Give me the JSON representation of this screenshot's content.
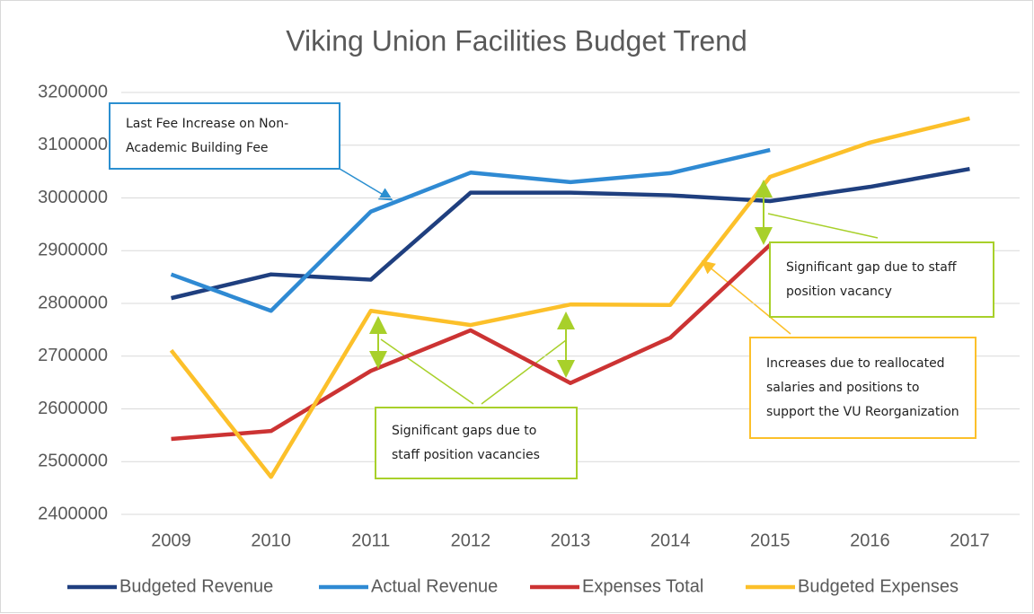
{
  "chart_data": {
    "type": "line",
    "title": "Viking Union Facilities Budget Trend",
    "categories": [
      "2009",
      "2010",
      "2011",
      "2012",
      "2013",
      "2014",
      "2015",
      "2016",
      "2017"
    ],
    "series": [
      {
        "name": "Budgeted Revenue",
        "color": "#1f3f7f",
        "values": [
          2810000,
          2855000,
          2845000,
          3010000,
          3010000,
          3005000,
          2994000,
          3021000,
          3055000
        ]
      },
      {
        "name": "Actual Revenue",
        "color": "#2f8ad3",
        "values": [
          2855000,
          2786000,
          2974000,
          3048000,
          3030000,
          3047000,
          3091000,
          null,
          null
        ]
      },
      {
        "name": "Expenses Total",
        "color": "#cc3333",
        "values": [
          2543000,
          2558000,
          2672000,
          2749000,
          2649000,
          2735000,
          2911000,
          null,
          null
        ]
      },
      {
        "name": "Budgeted Expenses",
        "color": "#fcc02a",
        "values": [
          2711000,
          2471000,
          2786000,
          2759000,
          2798000,
          2797000,
          3040000,
          3105000,
          3151000
        ]
      }
    ],
    "ylim": [
      2400000,
      3200000
    ],
    "yticks": [
      2400000,
      2500000,
      2600000,
      2700000,
      2800000,
      2900000,
      3000000,
      3100000,
      3200000
    ],
    "grid": true,
    "legend": "bottom",
    "annotations": [
      {
        "lines": [
          "Last Fee Increase on Non-",
          "Academic Building Fee"
        ],
        "color": "#2b8fd0"
      },
      {
        "lines": [
          "Significant gaps due to",
          "staff position vacancies"
        ],
        "color": "#a8d02a"
      },
      {
        "lines": [
          "Significant gap due to staff",
          "position vacancy"
        ],
        "color": "#a8d02a"
      },
      {
        "lines": [
          "Increases due to reallocated",
          "salaries and positions to",
          "support the VU Reorganization"
        ],
        "color": "#fcc02a"
      }
    ]
  }
}
